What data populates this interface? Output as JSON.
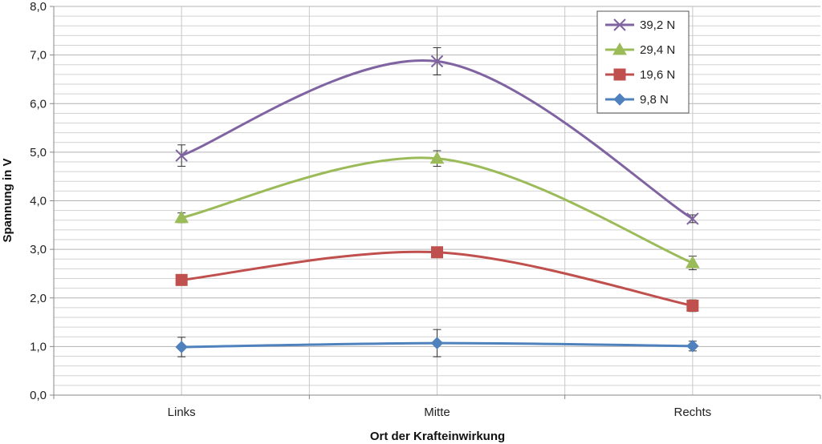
{
  "chart_data": {
    "type": "line",
    "title": "",
    "xlabel": "Ort der Krafteinwirkung",
    "ylabel": "Spannung in V",
    "categories": [
      "Links",
      "Mitte",
      "Rechts"
    ],
    "ylim": [
      0,
      8
    ],
    "yticks": [
      "0,0",
      "1,0",
      "2,0",
      "3,0",
      "4,0",
      "5,0",
      "6,0",
      "7,0",
      "8,0"
    ],
    "grid": true,
    "legend_position": "top-right",
    "smooth": true,
    "series": [
      {
        "name": "39,2 N",
        "color": "#8064a2",
        "marker": "x",
        "values": [
          4.93,
          6.87,
          3.63
        ],
        "errors": [
          0.22,
          0.28,
          0.08
        ]
      },
      {
        "name": "29,4 N",
        "color": "#9bbb59",
        "marker": "triangle",
        "values": [
          3.65,
          4.87,
          2.72
        ],
        "errors": [
          0.1,
          0.16,
          0.14
        ]
      },
      {
        "name": "19,6 N",
        "color": "#c0504d",
        "marker": "square",
        "values": [
          2.37,
          2.94,
          1.84
        ],
        "errors": [
          0.05,
          0.05,
          0.12
        ]
      },
      {
        "name": "9,8 N",
        "color": "#4f81bd",
        "marker": "diamond",
        "values": [
          0.99,
          1.07,
          1.01
        ],
        "errors": [
          0.2,
          0.28,
          0.1
        ]
      }
    ]
  }
}
